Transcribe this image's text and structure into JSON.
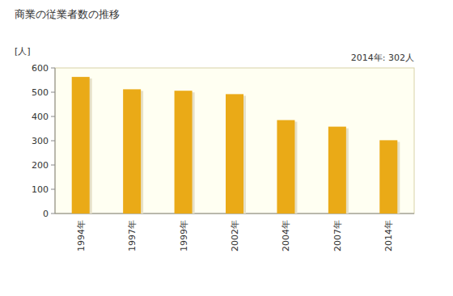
{
  "chart_data": {
    "type": "bar",
    "title": "商業の従業者数の推移",
    "y_label": "[人]",
    "annotation": "2014年: 302人",
    "categories": [
      "1994年",
      "1997年",
      "1999年",
      "2002年",
      "2004年",
      "2007年",
      "2014年"
    ],
    "values": [
      563,
      512,
      506,
      492,
      385,
      358,
      302
    ],
    "color": "#eaaa17",
    "ylim": [
      0,
      600
    ],
    "yticks": [
      0,
      100,
      200,
      300,
      400,
      500,
      600
    ],
    "grid": false
  }
}
